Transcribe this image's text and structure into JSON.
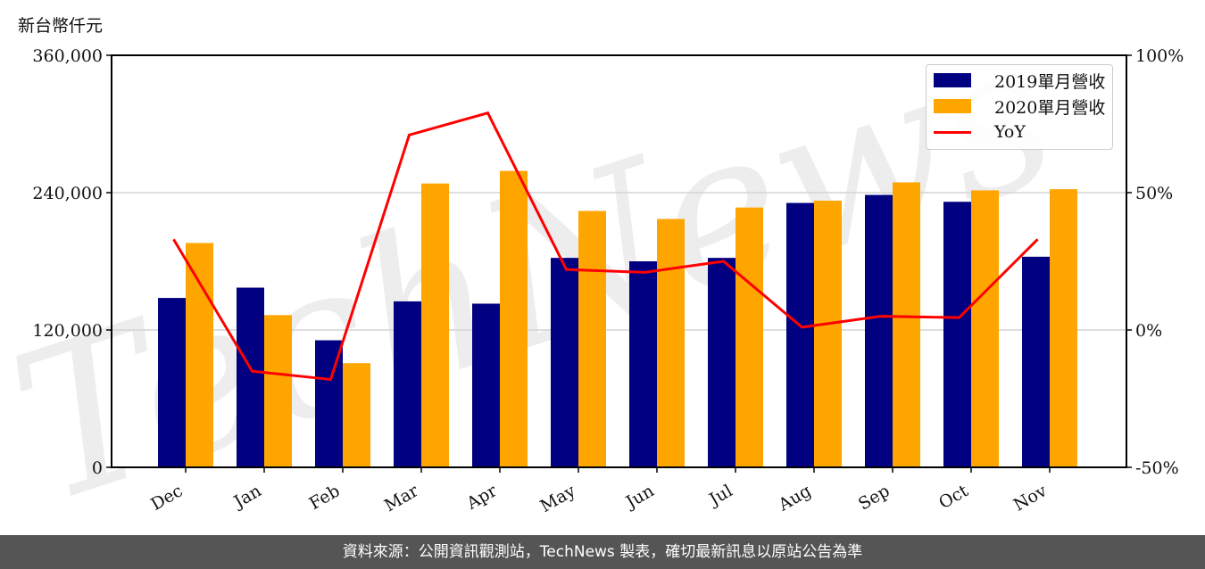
{
  "unit_label": "新台幣仟元",
  "footer": "資料來源：公開資訊觀測站，TechNews 製表，確切最新訊息以原站公告為準",
  "watermark": "TechNews",
  "colors": {
    "bar_2019": "#000080",
    "bar_2020": "#FFA500",
    "yoy": "#FF0000",
    "grid": "#d3d3d3",
    "footer_bg": "#555555"
  },
  "legend": {
    "items": [
      {
        "label": "2019單月營收",
        "type": "bar",
        "color": "#000080"
      },
      {
        "label": "2020單月營收",
        "type": "bar",
        "color": "#FFA500"
      },
      {
        "label": "YoY",
        "type": "line",
        "color": "#FF0000"
      }
    ]
  },
  "chart_data": {
    "type": "bar",
    "title": "",
    "xlabel": "",
    "ylabel": "新台幣仟元",
    "categories": [
      "Dec",
      "Jan",
      "Feb",
      "Mar",
      "Apr",
      "May",
      "Jun",
      "Jul",
      "Aug",
      "Sep",
      "Oct",
      "Nov"
    ],
    "series": [
      {
        "name": "2019單月營收",
        "type": "bar",
        "axis": "left",
        "values": [
          148000,
          157000,
          111000,
          145000,
          143000,
          183000,
          180000,
          183000,
          231000,
          238000,
          232000,
          184000
        ]
      },
      {
        "name": "2020單月營收",
        "type": "bar",
        "axis": "left",
        "values": [
          196000,
          133000,
          91000,
          248000,
          259000,
          224000,
          217000,
          227000,
          233000,
          249000,
          242000,
          243000
        ]
      },
      {
        "name": "YoY",
        "type": "line",
        "axis": "right",
        "unit": "%",
        "values": [
          33,
          -15,
          -18,
          71,
          79,
          22,
          21,
          25,
          1,
          5,
          4.5,
          33
        ]
      }
    ],
    "ylim": [
      0,
      360000
    ],
    "yticks": [
      "0",
      "120,000",
      "240,000",
      "360,000"
    ],
    "y2lim": [
      -50,
      100
    ],
    "y2ticks": [
      "-50%",
      "0%",
      "50%",
      "100%"
    ],
    "grid": "horizontal",
    "legend_position": "upper right"
  }
}
